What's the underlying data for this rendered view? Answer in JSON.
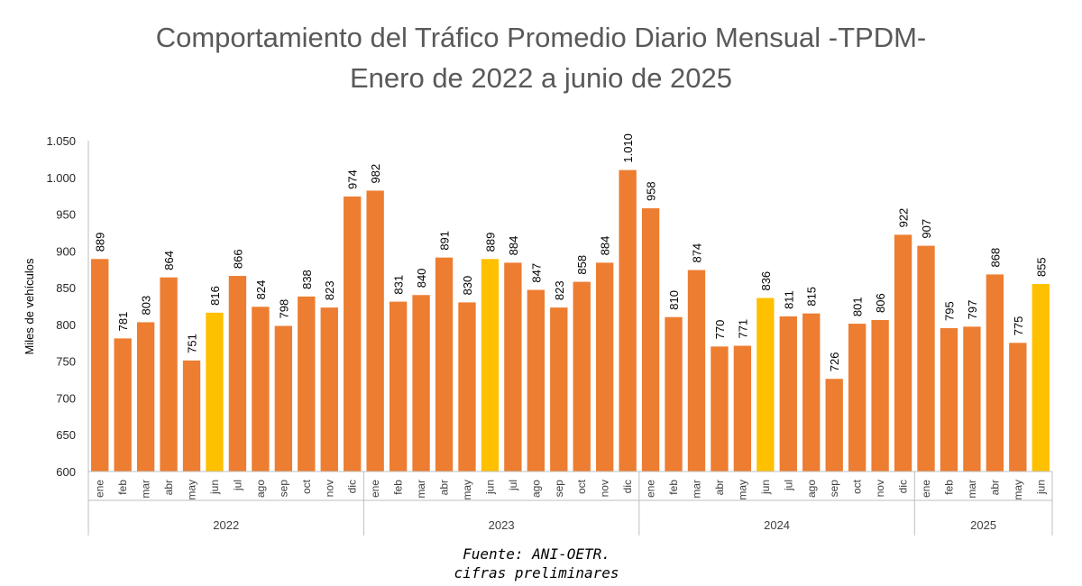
{
  "chart_data": {
    "type": "bar",
    "title": "Comportamiento del Tráfico Promedio Diario Mensual -TPDM-",
    "subtitle": "Enero de 2022 a junio de 2025",
    "ylabel": "Miles de vehículos",
    "ylim": [
      600,
      1050
    ],
    "yticks": [
      600,
      650,
      700,
      750,
      800,
      850,
      900,
      950,
      1000,
      1050
    ],
    "ytick_labels": [
      "600",
      "650",
      "700",
      "750",
      "800",
      "850",
      "900",
      "950",
      "1.000",
      "1.050"
    ],
    "colors": {
      "default": "#ED7D31",
      "highlight": "#FFC000",
      "axis": "#BFBFBF"
    },
    "groups": [
      {
        "year": "2022",
        "months": [
          "ene",
          "feb",
          "mar",
          "abr",
          "may",
          "jun",
          "jul",
          "ago",
          "sep",
          "oct",
          "nov",
          "dic"
        ],
        "values": [
          889,
          781,
          803,
          864,
          751,
          816,
          866,
          824,
          798,
          838,
          823,
          974
        ],
        "labels": [
          "889",
          "781",
          "803",
          "864",
          "751",
          "816",
          "866",
          "824",
          "798",
          "838",
          "823",
          "974"
        ]
      },
      {
        "year": "2023",
        "months": [
          "ene",
          "feb",
          "mar",
          "abr",
          "may",
          "jun",
          "jul",
          "ago",
          "sep",
          "oct",
          "nov",
          "dic"
        ],
        "values": [
          982,
          831,
          840,
          891,
          830,
          889,
          884,
          847,
          823,
          858,
          884,
          1010
        ],
        "labels": [
          "982",
          "831",
          "840",
          "891",
          "830",
          "889",
          "884",
          "847",
          "823",
          "858",
          "884",
          "1.010"
        ]
      },
      {
        "year": "2024",
        "months": [
          "ene",
          "feb",
          "mar",
          "abr",
          "may",
          "jun",
          "jul",
          "ago",
          "sep",
          "oct",
          "nov",
          "dic"
        ],
        "values": [
          958,
          810,
          874,
          770,
          771,
          836,
          811,
          815,
          726,
          801,
          806,
          922
        ],
        "labels": [
          "958",
          "810",
          "874",
          "770",
          "771",
          "836",
          "811",
          "815",
          "726",
          "801",
          "806",
          "922"
        ]
      },
      {
        "year": "2025",
        "months": [
          "ene",
          "feb",
          "mar",
          "abr",
          "may",
          "jun"
        ],
        "values": [
          907,
          795,
          797,
          868,
          775,
          855
        ],
        "labels": [
          "907",
          "795",
          "797",
          "868",
          "775",
          "855"
        ]
      }
    ],
    "highlight_month": "jun",
    "grid": false,
    "legend": "none"
  },
  "footer": {
    "source": "Fuente: ANI-OETR.",
    "note": "cifras preliminares"
  }
}
